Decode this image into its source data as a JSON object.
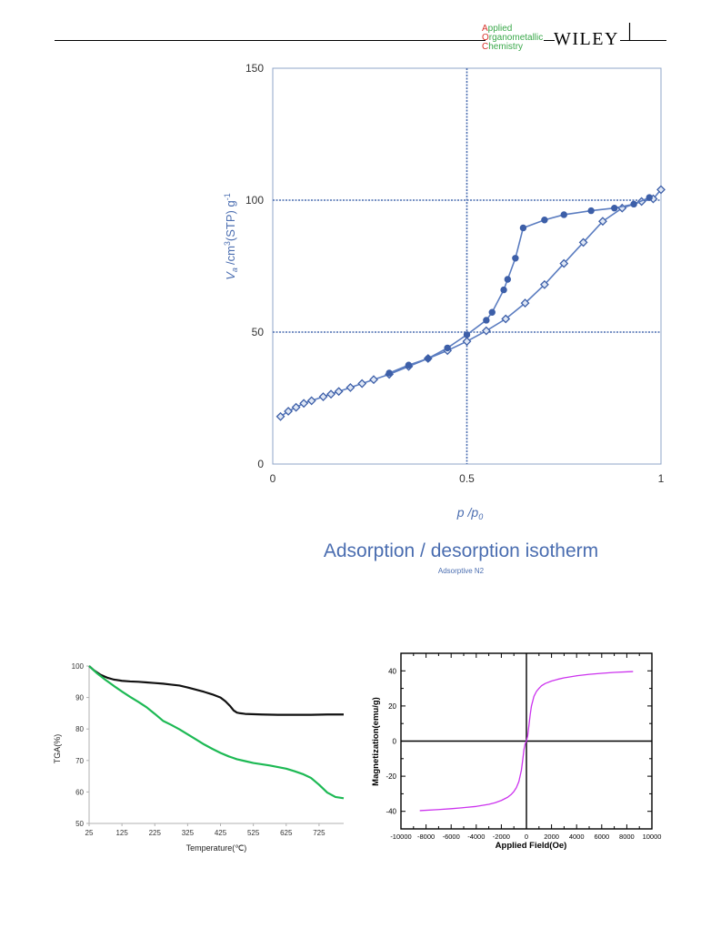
{
  "header": {
    "journal_line1_initial": "A",
    "journal_line1_rest": "pplied",
    "journal_line2_initial": "O",
    "journal_line2_rest": "rganometallic",
    "journal_line3_initial": "C",
    "journal_line3_rest": "hemistry",
    "publisher": "WILEY",
    "colors": {
      "initial": "#d6322a",
      "rest": "#3aa84a",
      "rule": "#000000"
    }
  },
  "figures": {
    "isotherm": {
      "title": "Adsorption / desorption isotherm",
      "subtitle": "Adsorptive N2",
      "color": "#4a6db0"
    },
    "tga": {
      "colors": {
        "series_a": "#111111",
        "series_b": "#1db954"
      }
    },
    "magnetization": {
      "colors": {
        "curve": "#cc33ee"
      }
    }
  },
  "chart_data": [
    {
      "type": "line",
      "xlabel_main": "p",
      "xlabel_sub": "/p",
      "xlabel_subscript": "0",
      "ylabel_var": "V",
      "ylabel_var_sub": "a",
      "ylabel_unit": "/cm",
      "ylabel_unit_sup": "3",
      "ylabel_unit_tail": "(STP) g",
      "ylabel_unit_sup2": "-1",
      "xlim": [
        0,
        1
      ],
      "ylim": [
        0,
        150
      ],
      "xticks": [
        "0",
        "0.5",
        "1"
      ],
      "yticks": [
        "0",
        "50",
        "100",
        "150"
      ],
      "reference_lines": {
        "x": [
          0.5
        ],
        "y": [
          50,
          100
        ]
      },
      "grid": false,
      "series": [
        {
          "marker": "diamond-open",
          "points": [
            [
              0.02,
              18
            ],
            [
              0.04,
              20
            ],
            [
              0.06,
              21.5
            ],
            [
              0.08,
              23
            ],
            [
              0.1,
              24
            ],
            [
              0.13,
              25.5
            ],
            [
              0.15,
              26.5
            ],
            [
              0.17,
              27.5
            ],
            [
              0.2,
              29
            ],
            [
              0.23,
              30.5
            ],
            [
              0.26,
              32
            ],
            [
              0.3,
              34
            ],
            [
              0.35,
              37
            ],
            [
              0.4,
              40
            ],
            [
              0.45,
              43
            ],
            [
              0.5,
              46.5
            ],
            [
              0.55,
              50.5
            ],
            [
              0.6,
              55
            ],
            [
              0.65,
              61
            ],
            [
              0.7,
              68
            ],
            [
              0.75,
              76
            ],
            [
              0.8,
              84
            ],
            [
              0.85,
              92
            ],
            [
              0.9,
              97
            ],
            [
              0.95,
              99.5
            ],
            [
              0.98,
              100.5
            ],
            [
              1.0,
              104
            ]
          ]
        },
        {
          "marker": "circle-filled",
          "points": [
            [
              0.97,
              101
            ],
            [
              0.93,
              98.5
            ],
            [
              0.88,
              97
            ],
            [
              0.82,
              96
            ],
            [
              0.75,
              94.5
            ],
            [
              0.7,
              92.5
            ],
            [
              0.645,
              89.5
            ],
            [
              0.625,
              78
            ],
            [
              0.605,
              70
            ],
            [
              0.595,
              66
            ],
            [
              0.565,
              57.5
            ],
            [
              0.55,
              54.5
            ],
            [
              0.5,
              49
            ],
            [
              0.45,
              44
            ],
            [
              0.4,
              40
            ],
            [
              0.35,
              37.5
            ],
            [
              0.3,
              34.5
            ]
          ]
        }
      ]
    },
    {
      "type": "line",
      "xlabel": "Temperature(℃)",
      "ylabel": "TGA(%)",
      "xlim": [
        25,
        800
      ],
      "ylim": [
        50,
        100
      ],
      "xticks": [
        "25",
        "125",
        "225",
        "325",
        "425",
        "525",
        "625",
        "725"
      ],
      "yticks": [
        "50",
        "60",
        "70",
        "80",
        "90",
        "100"
      ],
      "grid": false,
      "series": [
        {
          "x": [
            25,
            40,
            60,
            80,
            100,
            125,
            150,
            175,
            200,
            225,
            250,
            275,
            300,
            325,
            350,
            375,
            400,
            425,
            440,
            455,
            465,
            475,
            485,
            500,
            550,
            600,
            650,
            700,
            750,
            800
          ],
          "y": [
            100,
            98.6,
            97.2,
            96.3,
            95.7,
            95.3,
            95.1,
            95,
            94.8,
            94.6,
            94.4,
            94.1,
            93.8,
            93.2,
            92.5,
            91.8,
            91,
            90,
            88.8,
            87.2,
            85.9,
            85.2,
            85,
            84.8,
            84.6,
            84.5,
            84.5,
            84.5,
            84.6,
            84.6
          ]
        },
        {
          "x": [
            25,
            50,
            75,
            100,
            125,
            150,
            175,
            200,
            225,
            250,
            275,
            300,
            325,
            350,
            375,
            400,
            425,
            450,
            475,
            500,
            525,
            550,
            575,
            600,
            625,
            650,
            675,
            700,
            725,
            750,
            775,
            800
          ],
          "y": [
            100,
            97.6,
            95.6,
            93.7,
            91.9,
            90.2,
            88.6,
            86.9,
            84.8,
            82.6,
            81.3,
            79.9,
            78.3,
            76.7,
            75.1,
            73.7,
            72.4,
            71.3,
            70.4,
            69.8,
            69.2,
            68.8,
            68.4,
            67.9,
            67.4,
            66.6,
            65.7,
            64.5,
            62.3,
            59.8,
            58.4,
            58
          ]
        }
      ]
    },
    {
      "type": "line",
      "xlabel": "Applied Field(Oe)",
      "ylabel": "Magnetization(emu/g)",
      "xlim": [
        -10000,
        10000
      ],
      "ylim": [
        -50,
        50
      ],
      "xticks": [
        "-10000",
        "-8000",
        "-6000",
        "-4000",
        "-2000",
        "0",
        "2000",
        "4000",
        "6000",
        "8000",
        "10000"
      ],
      "yticks": [
        "-40",
        "-20",
        "0",
        "20",
        "40"
      ],
      "grid": false,
      "series": [
        {
          "x": [
            -8500,
            -7000,
            -6000,
            -5000,
            -4000,
            -3000,
            -2500,
            -2000,
            -1500,
            -1200,
            -1000,
            -800,
            -600,
            -400,
            -300,
            -200,
            -100,
            0,
            100,
            200,
            300,
            400,
            600,
            800,
            1000,
            1200,
            1500,
            2000,
            2500,
            3000,
            4000,
            5000,
            6000,
            7000,
            8500
          ],
          "y": [
            -39.6,
            -39,
            -38.5,
            -37.9,
            -37.2,
            -36,
            -35.1,
            -33.8,
            -32,
            -30.3,
            -28.7,
            -26.5,
            -23,
            -16.5,
            -11,
            -5,
            -1.5,
            0,
            3,
            9,
            15,
            20,
            25.5,
            28.3,
            30,
            31.5,
            32.8,
            34.2,
            35.2,
            36,
            37.2,
            38,
            38.6,
            39.1,
            39.6
          ]
        }
      ]
    }
  ]
}
